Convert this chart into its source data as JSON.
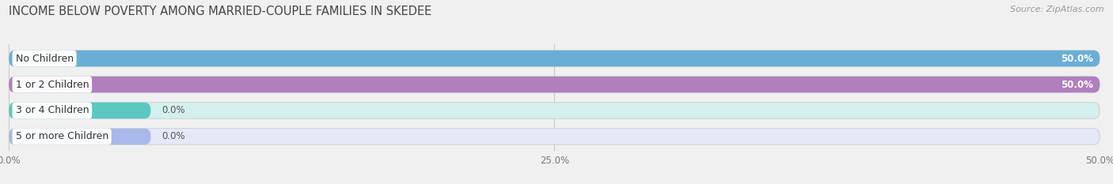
{
  "title": "INCOME BELOW POVERTY AMONG MARRIED-COUPLE FAMILIES IN SKEDEE",
  "source": "Source: ZipAtlas.com",
  "categories": [
    "No Children",
    "1 or 2 Children",
    "3 or 4 Children",
    "5 or more Children"
  ],
  "values": [
    50.0,
    50.0,
    0.0,
    0.0
  ],
  "bar_colors": [
    "#6aaed6",
    "#b07fbe",
    "#5bc8c0",
    "#a8b8e8"
  ],
  "bar_bg_colors": [
    "#e0ecf8",
    "#ecddf3",
    "#d4f0ee",
    "#e4e8f8"
  ],
  "xlim": [
    0,
    50.0
  ],
  "xticks": [
    0.0,
    25.0,
    50.0
  ],
  "xtick_labels": [
    "0.0%",
    "25.0%",
    "50.0%"
  ],
  "background_color": "#f0f0f0",
  "bar_height": 0.62,
  "bar_gap": 0.38,
  "title_fontsize": 10.5,
  "source_fontsize": 8,
  "label_fontsize": 9,
  "value_fontsize": 8.5,
  "small_bar_width": 6.5
}
